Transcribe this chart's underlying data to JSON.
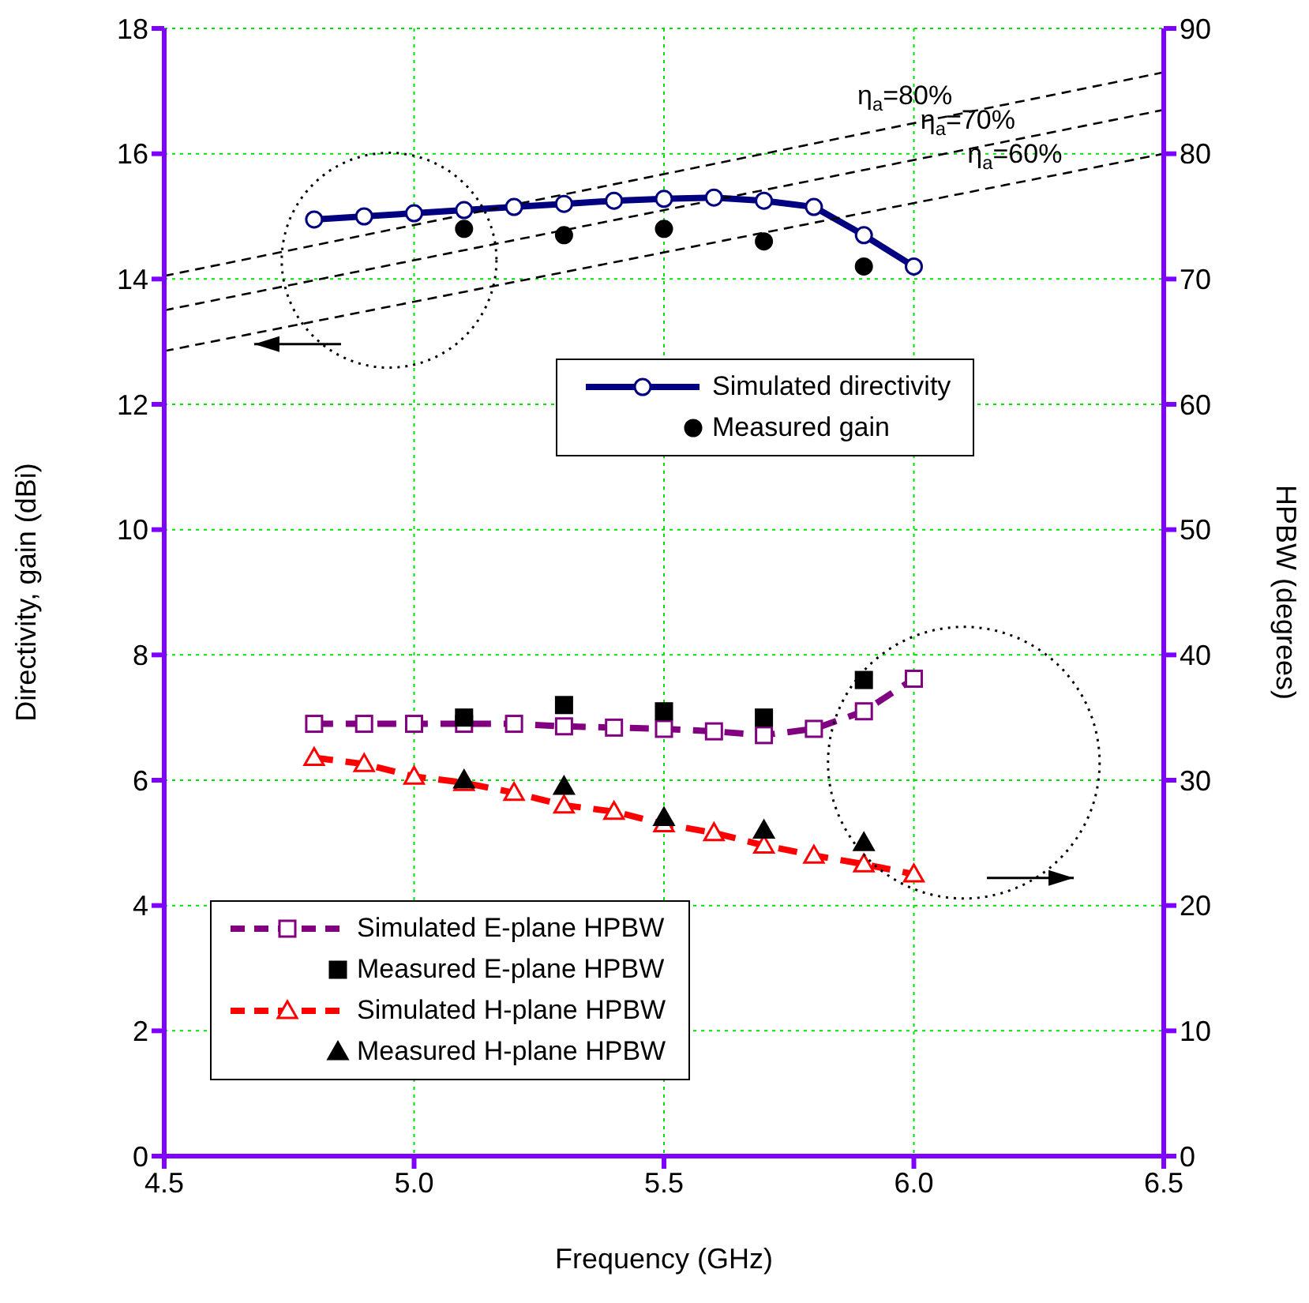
{
  "chart_data": {
    "type": "line",
    "xlabel": "Frequency (GHz)",
    "ylabel": "Directivity, gain (dBi)",
    "y2label": "HPBW (degrees)",
    "xlim": [
      4.5,
      6.5
    ],
    "xticks": [
      4.5,
      {
        "value": 5,
        "label": "5.0"
      },
      5.5,
      {
        "value": 6,
        "label": "6.0"
      },
      6.5
    ],
    "ylim": [
      0,
      18
    ],
    "yticks": [
      0,
      2,
      4,
      6,
      8,
      10,
      12,
      14,
      16,
      18
    ],
    "y2lim": [
      0,
      90
    ],
    "y2ticks": [
      0,
      10,
      20,
      30,
      40,
      50,
      60,
      70,
      80,
      90
    ],
    "grid": true,
    "legend": "bottom left",
    "series": [
      {
        "name": "Simulated directivity",
        "color": "#000080",
        "marker": "circle",
        "line_style": "solid",
        "x": [
          4.8,
          4.9,
          5.0,
          5.1,
          5.2,
          5.3,
          5.4,
          5.5,
          5.6,
          5.7,
          5.8,
          5.9,
          6.0
        ],
        "values": [
          14.95,
          15.0,
          15.05,
          15.1,
          15.15,
          15.2,
          15.25,
          15.28,
          15.3,
          15.25,
          15.15,
          14.7,
          14.2
        ]
      },
      {
        "name": "Measured gain",
        "type": "scatter",
        "color": "#000000",
        "marker": "circle",
        "x": [
          5.1,
          5.3,
          5.5,
          5.7,
          5.9
        ],
        "values": [
          14.8,
          14.7,
          14.8,
          14.6,
          14.2
        ]
      },
      {
        "name": "Simulated E-plane HPBW",
        "color": "#800080",
        "marker": "square",
        "line_style": "dashed",
        "axis": "y2",
        "x": [
          4.8,
          4.9,
          5.0,
          5.1,
          5.2,
          5.3,
          5.4,
          5.5,
          5.6,
          5.7,
          5.8,
          5.9,
          6.0
        ],
        "values": [
          34.5,
          34.5,
          34.5,
          34.5,
          34.5,
          34.3,
          34.2,
          34.1,
          33.9,
          33.6,
          34.1,
          35.5,
          38.1
        ]
      },
      {
        "name": "Measured E-plane HPBW",
        "type": "scatter",
        "color": "#000000",
        "marker": "square",
        "axis": "y2",
        "x": [
          5.1,
          5.3,
          5.5,
          5.7,
          5.9
        ],
        "values": [
          35,
          36,
          35.5,
          35,
          38
        ]
      },
      {
        "name": "Simulated H-plane HPBW",
        "color": "#ff0000",
        "marker": "triangle",
        "line_style": "dashed",
        "axis": "y2",
        "x": [
          4.8,
          4.9,
          5.0,
          5.1,
          5.2,
          5.3,
          5.4,
          5.5,
          5.6,
          5.7,
          5.8,
          5.9,
          6.0
        ],
        "values": [
          31.8,
          31.3,
          30.3,
          29.8,
          29,
          28,
          27.5,
          26.5,
          25.8,
          24.8,
          24,
          23.3,
          22.5
        ]
      },
      {
        "name": "Measured H-plane HPBW",
        "type": "scatter",
        "color": "#000000",
        "marker": "triangle",
        "axis": "y2",
        "x": [
          5.1,
          5.3,
          5.5,
          5.7,
          5.9
        ],
        "values": [
          30,
          29.5,
          27,
          26,
          25
        ]
      },
      {
        "name": "η$_{a}$=80%",
        "color": "#000000",
        "marker": "none",
        "line_style": "dashed",
        "x": [
          4.5,
          6.5
        ],
        "values": [
          14.05,
          17.3
        ]
      },
      {
        "name": "η$_{a}$=70%",
        "color": "#000000",
        "marker": "none",
        "line_style": "dashed",
        "x": [
          4.5,
          6.5
        ],
        "values": [
          13.5,
          16.7
        ]
      },
      {
        "name": "η$_{a}$=60%",
        "color": "#000000",
        "marker": "none",
        "line_style": "dashed",
        "x": [
          4.5,
          6.5
        ],
        "values": [
          12.85,
          16.0
        ]
      }
    ]
  }
}
